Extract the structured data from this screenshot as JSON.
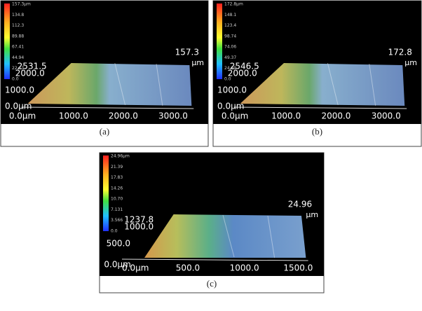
{
  "panels": [
    {
      "caption": "(a)",
      "colorbar": [
        "157.3µm",
        "134.8",
        "112.3",
        "89.88",
        "67.41",
        "44.94",
        "22.47",
        "0.0"
      ],
      "y_labels": [
        "2531.5",
        "2000.0",
        "1000.0",
        "0.0µm"
      ],
      "x_labels": [
        "0.0µm",
        "1000.0",
        "2000.0",
        "3000.0"
      ],
      "z_value": "157.3",
      "z_unit": "µm"
    },
    {
      "caption": "(b)",
      "colorbar": [
        "172.8µm",
        "148.1",
        "123.4",
        "98.74",
        "74.06",
        "49.37",
        "24.69",
        "0.0"
      ],
      "y_labels": [
        "2546.5",
        "2000.0",
        "1000.0",
        "0.0µm"
      ],
      "x_labels": [
        "0.0µm",
        "1000.0",
        "2000.0",
        "3000.0"
      ],
      "z_value": "172.8",
      "z_unit": "µm"
    },
    {
      "caption": "(c)",
      "colorbar": [
        "24.96µm",
        "21.39",
        "17.83",
        "14.26",
        "10.70",
        "7.131",
        "3.566",
        "0.0"
      ],
      "y_labels": [
        "1237.8",
        "1000.0",
        "500.0",
        "0.0µm"
      ],
      "x_labels": [
        "0.0µm",
        "500.0",
        "1000.0",
        "1500.0"
      ],
      "z_value": "24.96",
      "z_unit": "µm"
    }
  ]
}
